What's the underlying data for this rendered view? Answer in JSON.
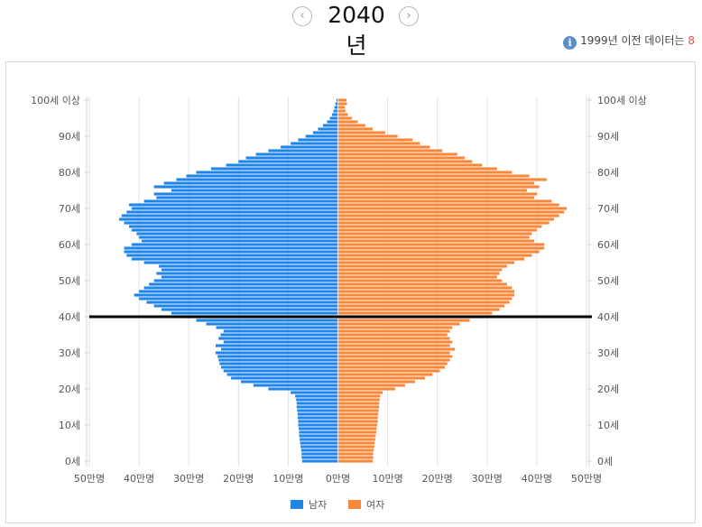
{
  "header": {
    "prev_glyph": "‹",
    "year": "2040년",
    "next_glyph": "›",
    "note_prefix": "1999년 이전 데이터는 ",
    "note_accent": "8",
    "info_glyph": "i"
  },
  "colors": {
    "male": "#1f86e6",
    "female": "#f5883a",
    "marker": "#000000",
    "grid": "#dde3ea"
  },
  "chart_data": {
    "type": "bar",
    "orientation": "horizontal-diverging",
    "ages": [
      0,
      1,
      2,
      3,
      4,
      5,
      6,
      7,
      8,
      9,
      10,
      11,
      12,
      13,
      14,
      15,
      16,
      17,
      18,
      19,
      20,
      21,
      22,
      23,
      24,
      25,
      26,
      27,
      28,
      29,
      30,
      31,
      32,
      33,
      34,
      35,
      36,
      37,
      38,
      39,
      40,
      41,
      42,
      43,
      44,
      45,
      46,
      47,
      48,
      49,
      50,
      51,
      52,
      53,
      54,
      55,
      56,
      57,
      58,
      59,
      60,
      61,
      62,
      63,
      64,
      65,
      66,
      67,
      68,
      69,
      70,
      71,
      72,
      73,
      74,
      75,
      76,
      77,
      78,
      79,
      80,
      81,
      82,
      83,
      84,
      85,
      86,
      87,
      88,
      89,
      90,
      91,
      92,
      93,
      94,
      95,
      96,
      97,
      98,
      99,
      100
    ],
    "series": [
      {
        "name": "남자",
        "values": [
          7.2,
          7.3,
          7.3,
          7.4,
          7.5,
          7.6,
          7.7,
          7.8,
          7.8,
          7.9,
          8.0,
          8.0,
          8.1,
          8.1,
          8.2,
          8.3,
          8.3,
          8.4,
          8.6,
          9.5,
          14.0,
          17.0,
          19.5,
          21.5,
          22.3,
          23.0,
          23.5,
          23.8,
          24.0,
          24.2,
          24.6,
          23.5,
          24.6,
          23.0,
          24.0,
          23.6,
          23.0,
          24.5,
          26.5,
          28.5,
          31.5,
          33.5,
          35.5,
          37.0,
          38.5,
          40.0,
          41.0,
          40.0,
          39.0,
          38.0,
          37.0,
          35.5,
          36.5,
          35.5,
          36.0,
          39.0,
          41.5,
          42.5,
          43.0,
          43.0,
          41.5,
          39.5,
          40.0,
          40.5,
          41.5,
          42.0,
          43.0,
          44.0,
          43.5,
          42.5,
          41.5,
          42.0,
          39.0,
          36.5,
          37.0,
          33.5,
          37.0,
          35.0,
          32.5,
          30.5,
          28.5,
          25.5,
          22.5,
          20.0,
          18.5,
          16.5,
          14.0,
          11.5,
          9.5,
          8.0,
          6.5,
          5.0,
          4.0,
          3.0,
          2.2,
          1.6,
          1.2,
          0.9,
          0.7,
          0.5,
          0.3
        ]
      },
      {
        "name": "여자",
        "values": [
          7.0,
          7.1,
          7.1,
          7.2,
          7.3,
          7.4,
          7.5,
          7.6,
          7.7,
          7.8,
          7.9,
          8.0,
          8.0,
          8.1,
          8.2,
          8.3,
          8.3,
          8.4,
          8.5,
          9.0,
          11.5,
          13.5,
          15.5,
          17.5,
          19.0,
          20.5,
          21.5,
          22.0,
          22.5,
          23.0,
          22.5,
          23.5,
          22.5,
          23.0,
          22.5,
          22.0,
          22.5,
          23.0,
          24.5,
          26.5,
          29.5,
          31.0,
          32.5,
          33.5,
          34.5,
          35.0,
          35.5,
          35.5,
          35.0,
          34.0,
          33.0,
          32.0,
          32.5,
          33.0,
          34.0,
          35.5,
          37.5,
          39.0,
          40.5,
          41.5,
          41.5,
          39.5,
          38.5,
          39.0,
          40.0,
          41.0,
          42.5,
          43.5,
          44.5,
          45.5,
          46.0,
          44.5,
          43.0,
          39.5,
          40.0,
          38.0,
          40.5,
          39.5,
          42.0,
          38.5,
          35.0,
          32.0,
          29.0,
          27.0,
          25.5,
          24.0,
          21.0,
          18.5,
          16.5,
          15.0,
          12.0,
          9.5,
          7.0,
          5.5,
          4.0,
          2.8,
          2.0,
          1.5,
          1.4,
          1.8,
          1.7
        ]
      }
    ],
    "x_unit": "만명",
    "xlim": [
      -50,
      50
    ],
    "x_ticks": [
      "50만명",
      "40만명",
      "30만명",
      "20만명",
      "10만명",
      "0만명",
      "10만명",
      "20만명",
      "30만명",
      "40만명",
      "50만명"
    ],
    "y_ticks": [
      "0세",
      "10세",
      "20세",
      "30세",
      "40세",
      "50세",
      "60세",
      "70세",
      "80세",
      "90세",
      "100세 이상"
    ],
    "marker_age": 40,
    "legend": [
      {
        "label": "남자",
        "color": "#1f86e6"
      },
      {
        "label": "여자",
        "color": "#f5883a"
      }
    ],
    "grid": true
  }
}
